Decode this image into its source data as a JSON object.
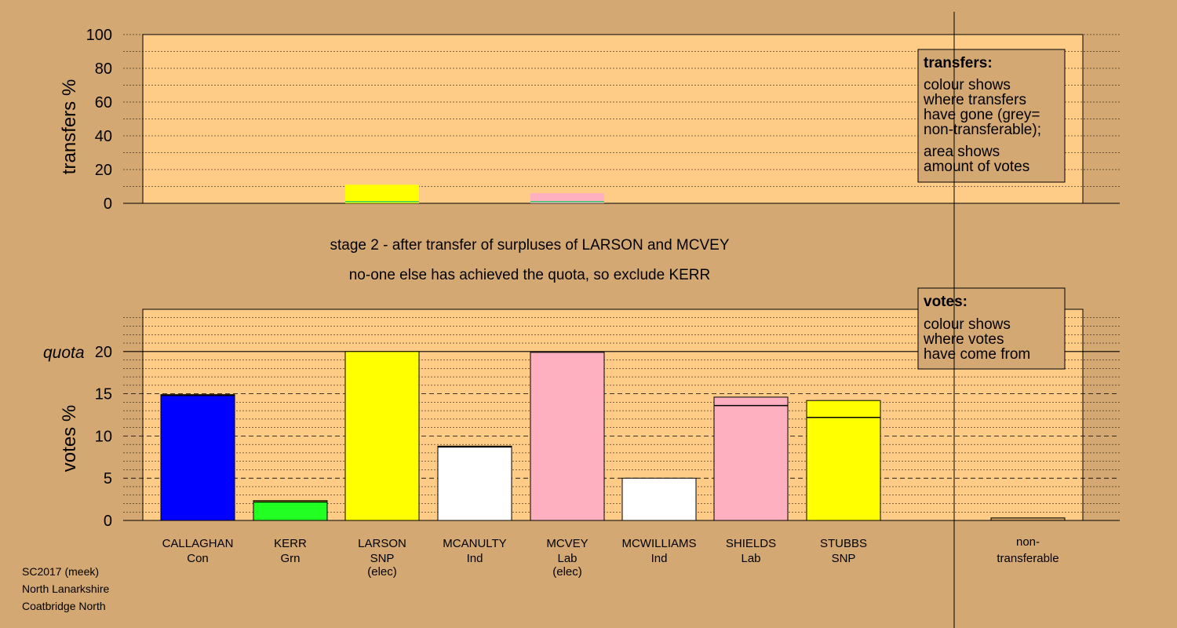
{
  "stage_lines": [
    "stage 2 - after transfer of surpluses of LARSON and MCVEY",
    "no-one else has achieved the quota, so exclude KERR"
  ],
  "footer": [
    "SC2017 (meek)",
    "North Lanarkshire",
    "Coatbridge North"
  ],
  "chart_data": [
    {
      "type": "bar",
      "ylabel": "transfers %",
      "ylim": [
        0,
        100
      ],
      "yticks": [
        0,
        20,
        40,
        60,
        80,
        100
      ],
      "grid": true,
      "legend": {
        "placement": "top-right",
        "title": "transfers:",
        "lines": [
          "colour shows",
          "where transfers",
          "have gone (grey=",
          "non-transferable);",
          "area shows",
          "amount of votes"
        ]
      },
      "bars": [
        {
          "candidate": "LARSON",
          "value": 11,
          "color": "#ffff00"
        },
        {
          "candidate": "MCVEY",
          "value": 6,
          "color": "#ffb0c0"
        }
      ]
    },
    {
      "type": "bar",
      "ylabel": "votes %",
      "ylim": [
        0,
        25
      ],
      "yticks": [
        0,
        5,
        10,
        15,
        20
      ],
      "grid": true,
      "quota": {
        "label": "quota",
        "value": 20
      },
      "legend": {
        "placement": "top-right",
        "title": "votes:",
        "lines": [
          "colour shows",
          "where votes",
          "have come from"
        ]
      },
      "candidates": [
        {
          "name": "CALLAGHAN",
          "party": "Con",
          "status": "",
          "color": "#0000ff",
          "segments": [
            {
              "value": 14.8,
              "color": "#0000ff"
            },
            {
              "value": 0.1,
              "color": "#ffff00"
            }
          ]
        },
        {
          "name": "KERR",
          "party": "Grn",
          "status": "",
          "color": "#22ff22",
          "segments": [
            {
              "value": 2.2,
              "color": "#22ff22"
            },
            {
              "value": 0.15,
              "color": "#ffff00"
            }
          ]
        },
        {
          "name": "LARSON",
          "party": "SNP",
          "status": "(elec)",
          "color": "#ffff00",
          "segments": [
            {
              "value": 20,
              "color": "#ffff00"
            }
          ]
        },
        {
          "name": "MCANULTY",
          "party": "Ind",
          "status": "",
          "color": "#ffffff",
          "segments": [
            {
              "value": 8.7,
              "color": "#ffffff"
            },
            {
              "value": 0.1,
              "color": "#ffff00"
            }
          ]
        },
        {
          "name": "MCVEY",
          "party": "Lab",
          "status": "(elec)",
          "color": "#ffb0c0",
          "segments": [
            {
              "value": 19.9,
              "color": "#ffb0c0"
            }
          ]
        },
        {
          "name": "MCWILLIAMS",
          "party": "Ind",
          "status": "",
          "color": "#ffffff",
          "segments": [
            {
              "value": 5.0,
              "color": "#ffffff"
            }
          ]
        },
        {
          "name": "SHIELDS",
          "party": "Lab",
          "status": "",
          "color": "#ffb0c0",
          "segments": [
            {
              "value": 13.6,
              "color": "#ffb0c0"
            },
            {
              "value": 1.0,
              "color": "#ffb0c0"
            }
          ]
        },
        {
          "name": "STUBBS",
          "party": "SNP",
          "status": "",
          "color": "#ffff00",
          "segments": [
            {
              "value": 12.2,
              "color": "#ffff00"
            },
            {
              "value": 2.0,
              "color": "#ffff00"
            }
          ]
        }
      ],
      "nontransferable": {
        "label_lines": [
          "non-",
          "transferable"
        ],
        "value": 0.3,
        "color": "#c8a060"
      }
    }
  ]
}
